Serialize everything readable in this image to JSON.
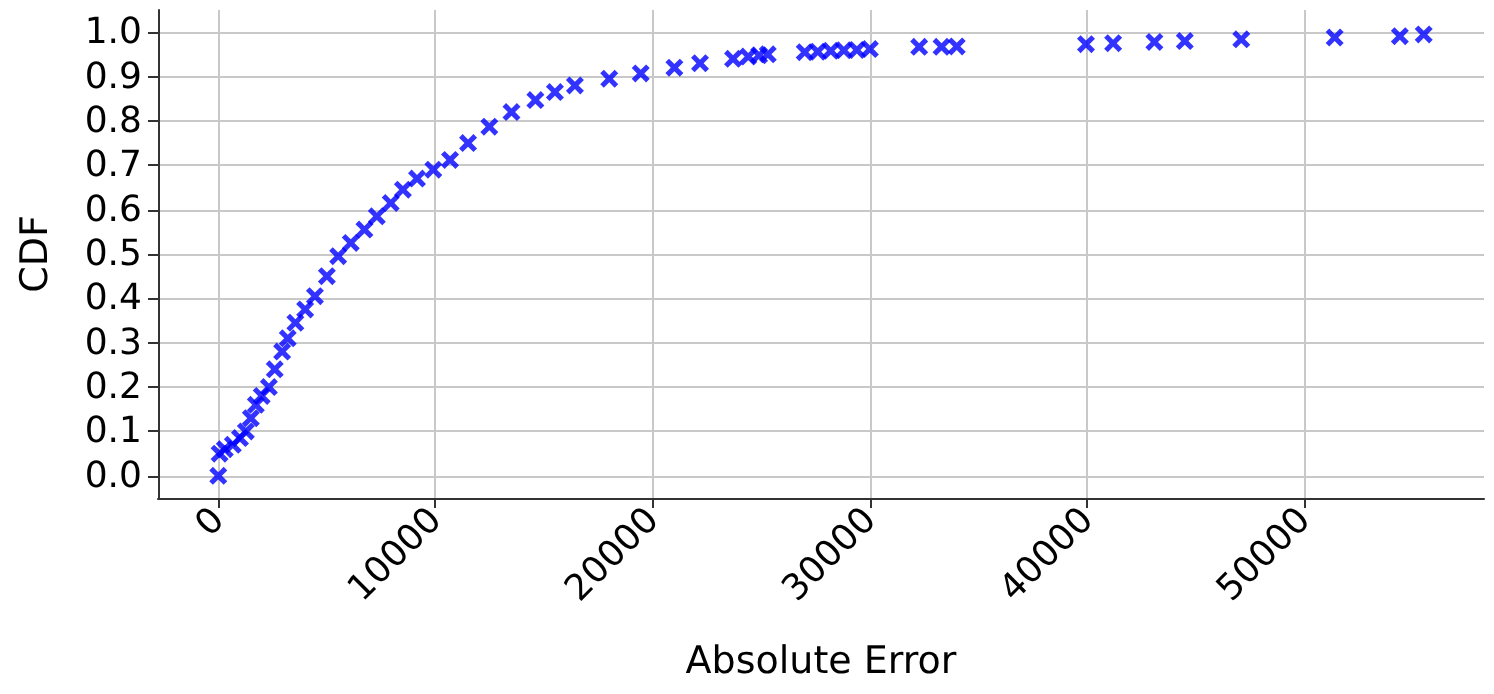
{
  "chart_data": {
    "type": "scatter",
    "xlabel": "Absolute Error",
    "ylabel": "CDF",
    "x": [
      0,
      60,
      300,
      670,
      1000,
      1270,
      1500,
      1730,
      2000,
      2330,
      2600,
      2940,
      3200,
      3550,
      4000,
      4450,
      5000,
      5520,
      6100,
      6730,
      7300,
      7940,
      8500,
      9150,
      9900,
      10670,
      11500,
      12480,
      13500,
      14600,
      15500,
      16420,
      18000,
      19450,
      21000,
      22180,
      23700,
      24400,
      24900,
      25300,
      27000,
      27600,
      28200,
      28800,
      29400,
      30000,
      32270,
      33300,
      34000,
      39950,
      41200,
      43100,
      44500,
      47100,
      51400,
      54400,
      55500
    ],
    "series": [
      {
        "color": "#0000ff",
        "values": [
          0,
          0.05,
          0.06,
          0.07,
          0.085,
          0.1,
          0.13,
          0.16,
          0.18,
          0.2,
          0.24,
          0.28,
          0.31,
          0.345,
          0.375,
          0.405,
          0.45,
          0.495,
          0.525,
          0.555,
          0.585,
          0.615,
          0.645,
          0.67,
          0.69,
          0.712,
          0.75,
          0.787,
          0.82,
          0.847,
          0.865,
          0.88,
          0.895,
          0.907,
          0.92,
          0.93,
          0.94,
          0.945,
          0.948,
          0.95,
          0.955,
          0.956,
          0.958,
          0.959,
          0.96,
          0.962,
          0.967,
          0.967,
          0.968,
          0.973,
          0.975,
          0.978,
          0.98,
          0.984,
          0.988,
          0.991,
          0.995
        ]
      }
    ],
    "xlim": [
      -2775,
      58275
    ],
    "xticks": [
      0,
      10000,
      20000,
      30000,
      40000,
      50000
    ],
    "ylim": [
      -0.05,
      1.05
    ],
    "yticks": [
      {
        "value": 0,
        "label": "0.0"
      },
      {
        "value": 0.1,
        "label": "0.1"
      },
      {
        "value": 0.2,
        "label": "0.2"
      },
      {
        "value": 0.3,
        "label": "0.3"
      },
      {
        "value": 0.4,
        "label": "0.4"
      },
      {
        "value": 0.5,
        "label": "0.5"
      },
      {
        "value": 0.6,
        "label": "0.6"
      },
      {
        "value": 0.7,
        "label": "0.7"
      },
      {
        "value": 0.8,
        "label": "0.8"
      },
      {
        "value": 0.9,
        "label": "0.9"
      },
      {
        "value": 1,
        "label": "1.0"
      }
    ],
    "grid": true,
    "marker": "cross"
  }
}
